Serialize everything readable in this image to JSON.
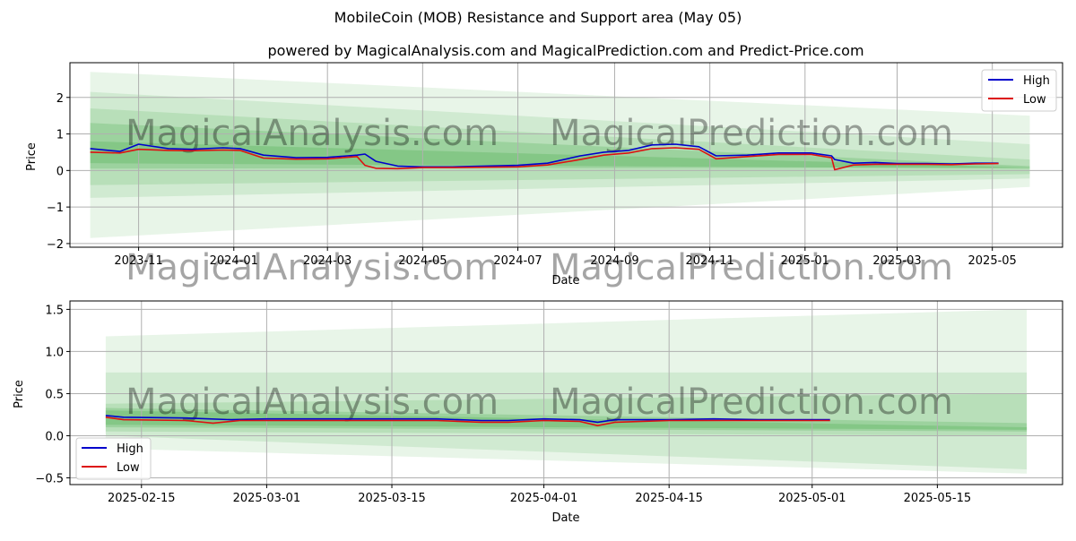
{
  "title": "MobileCoin (MOB) Resistance and Support area (May 05)",
  "subtitle": "powered by MagicalAnalysis.com and MagicalPrediction.com and Predict-Price.com",
  "watermarks": [
    "MagicalAnalysis.com",
    "MagicalPrediction.com"
  ],
  "colors": {
    "high": "#0000cc",
    "low": "#dd1111",
    "band": "#4caf50",
    "grid": "#b0b0b0",
    "frame": "#000000"
  },
  "chart_data": [
    {
      "type": "line",
      "xlabel": "Date",
      "ylabel": "Price",
      "x_tick_labels": [
        "2023-11",
        "2024-01",
        "2024-03",
        "2024-05",
        "2024-07",
        "2024-09",
        "2024-11",
        "2025-01",
        "2025-03",
        "2025-05"
      ],
      "y_tick_labels": [
        "−2",
        "−1",
        "0",
        "1",
        "2"
      ],
      "xlim": [
        "2023-09-18",
        "2025-06-15"
      ],
      "ylim": [
        -2.1,
        2.95
      ],
      "grid": true,
      "legend": {
        "position": "top-right",
        "entries": [
          "High",
          "Low"
        ]
      },
      "series": [
        {
          "name": "High",
          "x": [
            "2023-10-01",
            "2023-10-20",
            "2023-11-01",
            "2023-11-20",
            "2023-12-05",
            "2023-12-25",
            "2024-01-05",
            "2024-01-20",
            "2024-02-10",
            "2024-03-01",
            "2024-03-20",
            "2024-03-25",
            "2024-04-01",
            "2024-04-15",
            "2024-05-01",
            "2024-05-20",
            "2024-06-10",
            "2024-07-01",
            "2024-07-20",
            "2024-08-10",
            "2024-08-25",
            "2024-09-10",
            "2024-09-25",
            "2024-10-10",
            "2024-10-25",
            "2024-11-05",
            "2024-11-25",
            "2024-12-15",
            "2025-01-05",
            "2025-01-18",
            "2025-01-20",
            "2025-02-01",
            "2025-02-15",
            "2025-03-01",
            "2025-03-20",
            "2025-04-05",
            "2025-04-20",
            "2025-05-05"
          ],
          "values": [
            0.6,
            0.52,
            0.72,
            0.6,
            0.58,
            0.62,
            0.6,
            0.42,
            0.35,
            0.36,
            0.42,
            0.45,
            0.25,
            0.12,
            0.1,
            0.1,
            0.12,
            0.14,
            0.2,
            0.4,
            0.5,
            0.55,
            0.7,
            0.72,
            0.65,
            0.4,
            0.42,
            0.48,
            0.48,
            0.4,
            0.3,
            0.2,
            0.22,
            0.19,
            0.19,
            0.18,
            0.2,
            0.2
          ]
        },
        {
          "name": "Low",
          "x": [
            "2023-10-01",
            "2023-10-20",
            "2023-11-01",
            "2023-11-20",
            "2023-12-05",
            "2023-12-25",
            "2024-01-05",
            "2024-01-20",
            "2024-02-10",
            "2024-03-01",
            "2024-03-20",
            "2024-03-25",
            "2024-04-01",
            "2024-04-15",
            "2024-05-01",
            "2024-05-20",
            "2024-06-10",
            "2024-07-01",
            "2024-07-20",
            "2024-08-10",
            "2024-08-25",
            "2024-09-10",
            "2024-09-25",
            "2024-10-10",
            "2024-10-25",
            "2024-11-05",
            "2024-11-25",
            "2024-12-15",
            "2025-01-05",
            "2025-01-18",
            "2025-01-20",
            "2025-02-01",
            "2025-02-15",
            "2025-03-01",
            "2025-03-20",
            "2025-04-05",
            "2025-04-20",
            "2025-05-05"
          ],
          "values": [
            0.5,
            0.48,
            0.58,
            0.55,
            0.54,
            0.56,
            0.55,
            0.34,
            0.31,
            0.32,
            0.38,
            0.14,
            0.06,
            0.05,
            0.08,
            0.08,
            0.09,
            0.1,
            0.15,
            0.3,
            0.42,
            0.48,
            0.6,
            0.62,
            0.58,
            0.32,
            0.38,
            0.44,
            0.44,
            0.35,
            0.02,
            0.15,
            0.17,
            0.17,
            0.17,
            0.16,
            0.18,
            0.19
          ]
        }
      ],
      "bands": [
        {
          "x": [
            "2023-10-01",
            "2025-05-25"
          ],
          "upper": [
            2.7,
            1.5
          ],
          "lower": [
            -1.85,
            -0.45
          ],
          "opacity": 0.13
        },
        {
          "x": [
            "2023-10-01",
            "2025-05-25"
          ],
          "upper": [
            2.15,
            0.72
          ],
          "lower": [
            -0.75,
            -0.22
          ],
          "opacity": 0.15
        },
        {
          "x": [
            "2023-10-01",
            "2025-05-25"
          ],
          "upper": [
            1.7,
            0.3
          ],
          "lower": [
            -0.4,
            -0.1
          ],
          "opacity": 0.18
        },
        {
          "x": [
            "2023-10-01",
            "2025-05-25"
          ],
          "upper": [
            1.3,
            0.12
          ],
          "lower": [
            0.05,
            0.08
          ],
          "opacity": 0.26
        },
        {
          "x": [
            "2023-10-01",
            "2025-05-25"
          ],
          "upper": [
            0.8,
            0.08
          ],
          "lower": [
            0.2,
            0.05
          ],
          "opacity": 0.3
        }
      ]
    },
    {
      "type": "line",
      "xlabel": "Date",
      "ylabel": "Price",
      "x_tick_labels": [
        "2025-02-15",
        "2025-03-01",
        "2025-03-15",
        "2025-04-01",
        "2025-04-15",
        "2025-05-01",
        "2025-05-15"
      ],
      "y_tick_labels": [
        "−0.5",
        "0.0",
        "0.5",
        "1.0",
        "1.5"
      ],
      "xlim": [
        "2025-02-07",
        "2025-05-29"
      ],
      "ylim": [
        -0.58,
        1.6
      ],
      "grid": true,
      "legend": {
        "position": "bottom-left",
        "entries": [
          "High",
          "Low"
        ]
      },
      "series": [
        {
          "name": "High",
          "x": [
            "2025-02-11",
            "2025-02-13",
            "2025-02-20",
            "2025-02-25",
            "2025-03-01",
            "2025-03-10",
            "2025-03-20",
            "2025-03-25",
            "2025-03-28",
            "2025-04-01",
            "2025-04-05",
            "2025-04-07",
            "2025-04-09",
            "2025-04-15",
            "2025-04-20",
            "2025-04-25",
            "2025-05-01",
            "2025-05-03"
          ],
          "values": [
            0.24,
            0.22,
            0.21,
            0.19,
            0.2,
            0.2,
            0.2,
            0.18,
            0.18,
            0.2,
            0.19,
            0.16,
            0.19,
            0.19,
            0.2,
            0.19,
            0.19,
            0.19
          ]
        },
        {
          "name": "Low",
          "x": [
            "2025-02-11",
            "2025-02-13",
            "2025-02-20",
            "2025-02-23",
            "2025-02-26",
            "2025-03-01",
            "2025-03-10",
            "2025-03-20",
            "2025-03-25",
            "2025-03-28",
            "2025-04-01",
            "2025-04-05",
            "2025-04-07",
            "2025-04-09",
            "2025-04-15",
            "2025-04-20",
            "2025-04-25",
            "2025-05-01",
            "2025-05-03"
          ],
          "values": [
            0.22,
            0.19,
            0.18,
            0.15,
            0.18,
            0.18,
            0.18,
            0.18,
            0.16,
            0.16,
            0.18,
            0.17,
            0.12,
            0.16,
            0.18,
            0.18,
            0.18,
            0.18,
            0.18
          ]
        }
      ],
      "bands": [
        {
          "x": [
            "2025-02-11",
            "2025-05-25"
          ],
          "upper": [
            1.18,
            1.5
          ],
          "lower": [
            -0.15,
            -0.45
          ],
          "opacity": 0.13
        },
        {
          "x": [
            "2025-02-11",
            "2025-05-25"
          ],
          "upper": [
            0.75,
            0.75
          ],
          "lower": [
            0.0,
            -0.4
          ],
          "opacity": 0.15
        },
        {
          "x": [
            "2025-02-11",
            "2025-05-25"
          ],
          "upper": [
            0.38,
            0.5
          ],
          "lower": [
            0.05,
            0.0
          ],
          "opacity": 0.18
        },
        {
          "x": [
            "2025-02-11",
            "2025-05-25"
          ],
          "upper": [
            0.33,
            0.15
          ],
          "lower": [
            0.1,
            0.05
          ],
          "opacity": 0.26
        },
        {
          "x": [
            "2025-02-11",
            "2025-05-25"
          ],
          "upper": [
            0.3,
            0.1
          ],
          "lower": [
            0.13,
            0.07
          ],
          "opacity": 0.3
        }
      ]
    }
  ]
}
